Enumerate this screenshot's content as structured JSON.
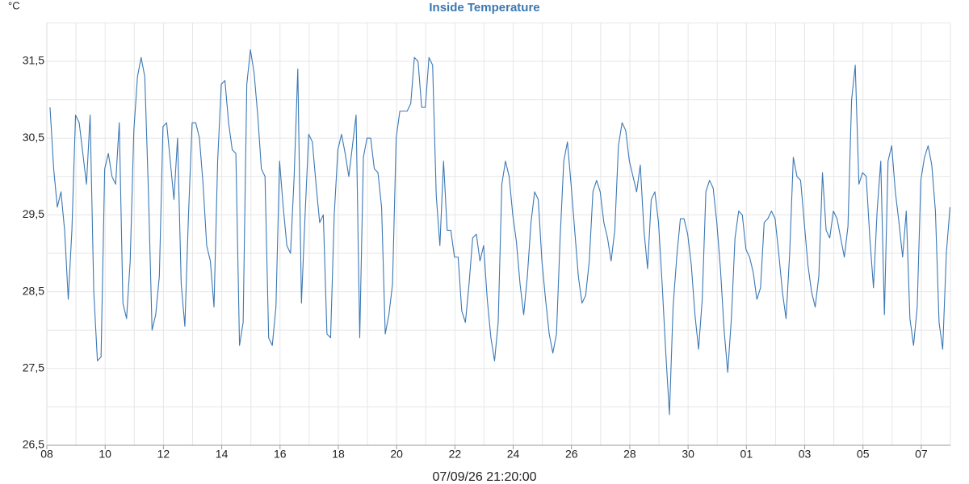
{
  "chart_data": {
    "type": "line",
    "title": "Inside Temperature",
    "y_label": "°C",
    "x_label": "07/09/26 21:20:00",
    "color": "#3b78b5",
    "grid": true,
    "xlim": [
      0,
      31
    ],
    "xticks": [
      {
        "value": 0,
        "label": "08"
      },
      {
        "value": 2,
        "label": "10"
      },
      {
        "value": 4,
        "label": "12"
      },
      {
        "value": 6,
        "label": "14"
      },
      {
        "value": 8,
        "label": "16"
      },
      {
        "value": 10,
        "label": "18"
      },
      {
        "value": 12,
        "label": "20"
      },
      {
        "value": 14,
        "label": "22"
      },
      {
        "value": 16,
        "label": "24"
      },
      {
        "value": 18,
        "label": "26"
      },
      {
        "value": 20,
        "label": "28"
      },
      {
        "value": 22,
        "label": "30"
      },
      {
        "value": 24,
        "label": "01"
      },
      {
        "value": 26,
        "label": "03"
      },
      {
        "value": 28,
        "label": "05"
      },
      {
        "value": 30,
        "label": "07"
      }
    ],
    "xminor": [
      1,
      3,
      5,
      7,
      9,
      11,
      13,
      15,
      17,
      19,
      21,
      23,
      25,
      27,
      29,
      31
    ],
    "ylim": [
      26.5,
      32
    ],
    "yticks": [
      {
        "value": 26.5,
        "label": "26,5"
      },
      {
        "value": 27.5,
        "label": "27,5"
      },
      {
        "value": 28.5,
        "label": "28,5"
      },
      {
        "value": 29.5,
        "label": "29,5"
      },
      {
        "value": 30.5,
        "label": "30,5"
      },
      {
        "value": 31.5,
        "label": "31,5"
      }
    ],
    "yminor": [
      27,
      28,
      29,
      30,
      31,
      32
    ],
    "x": [
      0.11,
      0.235,
      0.36,
      0.485,
      0.61,
      0.735,
      0.86,
      0.985,
      1.11,
      1.235,
      1.36,
      1.485,
      1.61,
      1.735,
      1.86,
      1.985,
      2.11,
      2.235,
      2.36,
      2.485,
      2.61,
      2.735,
      2.86,
      2.985,
      3.11,
      3.235,
      3.36,
      3.485,
      3.61,
      3.735,
      3.86,
      3.985,
      4.11,
      4.235,
      4.36,
      4.485,
      4.61,
      4.735,
      4.86,
      4.985,
      5.11,
      5.235,
      5.36,
      5.485,
      5.61,
      5.735,
      5.86,
      5.985,
      6.11,
      6.235,
      6.36,
      6.485,
      6.61,
      6.735,
      6.86,
      6.985,
      7.11,
      7.235,
      7.36,
      7.485,
      7.61,
      7.735,
      7.86,
      7.985,
      8.11,
      8.235,
      8.36,
      8.485,
      8.61,
      8.735,
      8.86,
      8.985,
      9.11,
      9.235,
      9.36,
      9.485,
      9.61,
      9.735,
      9.86,
      9.985,
      10.11,
      10.235,
      10.36,
      10.485,
      10.61,
      10.735,
      10.86,
      10.985,
      11.11,
      11.235,
      11.36,
      11.485,
      11.61,
      11.735,
      11.86,
      11.985,
      12.11,
      12.235,
      12.36,
      12.485,
      12.61,
      12.735,
      12.86,
      12.985,
      13.11,
      13.235,
      13.36,
      13.485,
      13.61,
      13.735,
      13.86,
      13.985,
      14.11,
      14.235,
      14.36,
      14.485,
      14.61,
      14.735,
      14.86,
      14.985,
      15.11,
      15.235,
      15.36,
      15.485,
      15.61,
      15.735,
      15.86,
      15.985,
      16.11,
      16.235,
      16.36,
      16.485,
      16.61,
      16.735,
      16.86,
      16.985,
      17.11,
      17.235,
      17.36,
      17.485,
      17.61,
      17.735,
      17.86,
      17.985,
      18.11,
      18.235,
      18.36,
      18.485,
      18.61,
      18.735,
      18.86,
      18.985,
      19.11,
      19.235,
      19.36,
      19.485,
      19.61,
      19.735,
      19.86,
      19.985,
      20.11,
      20.235,
      20.36,
      20.485,
      20.61,
      20.735,
      20.86,
      20.985,
      21.11,
      21.235,
      21.36,
      21.485,
      21.61,
      21.735,
      21.86,
      21.985,
      22.11,
      22.235,
      22.36,
      22.485,
      22.61,
      22.735,
      22.86,
      22.985,
      23.11,
      23.235,
      23.36,
      23.485,
      23.61,
      23.735,
      23.86,
      23.985,
      24.11,
      24.235,
      24.36,
      24.485,
      24.61,
      24.735,
      24.86,
      24.985,
      25.11,
      25.235,
      25.36,
      25.485,
      25.61,
      25.735,
      25.86,
      25.985,
      26.11,
      26.235,
      26.36,
      26.485,
      26.61,
      26.735,
      26.86,
      26.985,
      27.11,
      27.235,
      27.36,
      27.485,
      27.61,
      27.735,
      27.86,
      27.985,
      28.11,
      28.235,
      28.36,
      28.485,
      28.61,
      28.735,
      28.86,
      28.985,
      29.11,
      29.235,
      29.36,
      29.485,
      29.61,
      29.735,
      29.86,
      29.985,
      30.11,
      30.235,
      30.36,
      30.485,
      30.61,
      30.735,
      30.86,
      30.985
    ],
    "values": [
      30.9,
      30.1,
      29.6,
      29.8,
      29.3,
      28.4,
      29.3,
      30.8,
      30.7,
      30.3,
      29.9,
      30.8,
      28.5,
      27.6,
      27.65,
      30.1,
      30.3,
      30.0,
      29.9,
      30.7,
      28.35,
      28.15,
      28.9,
      30.6,
      31.3,
      31.55,
      31.3,
      29.8,
      28.0,
      28.2,
      28.7,
      30.65,
      30.7,
      30.2,
      29.7,
      30.5,
      28.6,
      28.05,
      29.5,
      30.7,
      30.7,
      30.5,
      29.9,
      29.1,
      28.9,
      28.3,
      30.2,
      31.2,
      31.25,
      30.7,
      30.35,
      30.3,
      27.8,
      28.1,
      31.2,
      31.65,
      31.35,
      30.8,
      30.1,
      30.0,
      27.9,
      27.8,
      28.3,
      30.2,
      29.6,
      29.1,
      29.0,
      30.0,
      31.4,
      28.35,
      29.5,
      30.55,
      30.45,
      29.9,
      29.4,
      29.5,
      27.95,
      27.9,
      29.5,
      30.35,
      30.55,
      30.3,
      30.0,
      30.4,
      30.8,
      27.9,
      30.25,
      30.5,
      30.5,
      30.1,
      30.05,
      29.6,
      27.95,
      28.2,
      28.6,
      30.5,
      30.85,
      30.85,
      30.85,
      30.95,
      31.55,
      31.5,
      30.9,
      30.9,
      31.55,
      31.45,
      29.75,
      29.1,
      30.2,
      29.3,
      29.3,
      28.95,
      28.95,
      28.25,
      28.1,
      28.6,
      29.2,
      29.25,
      28.9,
      29.1,
      28.4,
      27.9,
      27.6,
      28.1,
      29.9,
      30.2,
      30.0,
      29.5,
      29.15,
      28.6,
      28.2,
      28.7,
      29.4,
      29.8,
      29.7,
      28.9,
      28.4,
      27.95,
      27.7,
      27.95,
      29.2,
      30.2,
      30.45,
      29.9,
      29.3,
      28.7,
      28.35,
      28.45,
      28.9,
      29.8,
      29.95,
      29.8,
      29.4,
      29.2,
      28.9,
      29.3,
      30.4,
      30.7,
      30.6,
      30.2,
      30.0,
      29.8,
      30.15,
      29.3,
      28.8,
      29.7,
      29.8,
      29.4,
      28.6,
      27.7,
      26.9,
      28.3,
      28.95,
      29.45,
      29.45,
      29.25,
      28.85,
      28.2,
      27.75,
      28.4,
      29.8,
      29.95,
      29.85,
      29.4,
      28.8,
      28.0,
      27.45,
      28.15,
      29.2,
      29.55,
      29.5,
      29.05,
      28.95,
      28.75,
      28.4,
      28.55,
      29.4,
      29.45,
      29.55,
      29.45,
      29.0,
      28.5,
      28.15,
      29.0,
      30.25,
      30.0,
      29.95,
      29.4,
      28.85,
      28.5,
      28.3,
      28.7,
      30.05,
      29.3,
      29.2,
      29.55,
      29.45,
      29.2,
      28.95,
      29.35,
      31.0,
      31.45,
      29.9,
      30.05,
      30.0,
      29.2,
      28.55,
      29.55,
      30.2,
      28.2,
      30.2,
      30.4,
      29.8,
      29.4,
      28.95,
      29.55,
      28.15,
      27.8,
      28.3,
      29.95,
      30.25,
      30.4,
      30.15,
      29.55,
      28.1,
      27.75,
      29.0,
      29.6
    ]
  }
}
